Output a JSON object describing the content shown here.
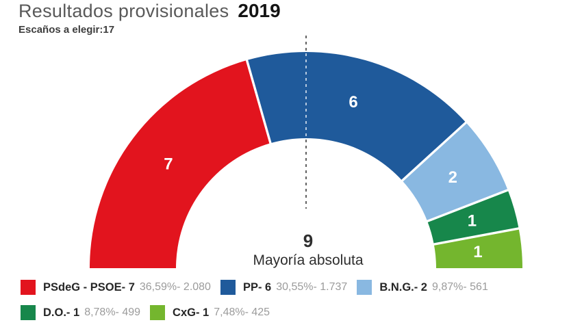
{
  "header": {
    "title": "Resultados provisionales",
    "year": "2019",
    "subtitle": "Escaños a elegir:17"
  },
  "chart_data": {
    "type": "pie",
    "variant": "semicircle-donut-parliament",
    "title": "Resultados provisionales 2019",
    "total_seats": 17,
    "majority": {
      "value": "9",
      "label": "Mayoría absoluta"
    },
    "legend_position": "bottom-left",
    "series": [
      {
        "party": "PSdeG - PSOE",
        "label": "PSdeG - PSOE- 7",
        "seats": 7,
        "percent": "36,59%",
        "votes": "2.080",
        "detail": "36,59%- 2.080",
        "color": "#e2141e"
      },
      {
        "party": "PP",
        "label": "PP- 6",
        "seats": 6,
        "percent": "30,55%",
        "votes": "1.737",
        "detail": "30,55%- 1.737",
        "color": "#1f5a9b"
      },
      {
        "party": "B.N.G.",
        "label": "B.N.G.- 2",
        "seats": 2,
        "percent": "9,87%",
        "votes": "561",
        "detail": "9,87%- 561",
        "color": "#89b8e1"
      },
      {
        "party": "D.O.",
        "label": "D.O.- 1",
        "seats": 1,
        "percent": "8,78%",
        "votes": "499",
        "detail": "8,78%- 499",
        "color": "#17874b"
      },
      {
        "party": "CxG",
        "label": "CxG- 1",
        "seats": 1,
        "percent": "7,48%",
        "votes": "425",
        "detail": "7,48%- 425",
        "color": "#74b62e"
      }
    ]
  }
}
